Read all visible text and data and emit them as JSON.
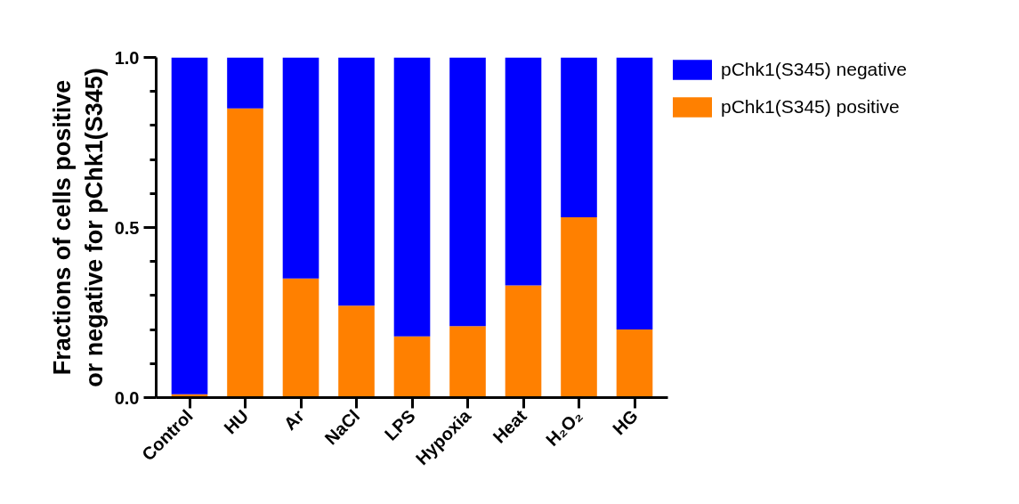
{
  "chart_data": {
    "type": "bar",
    "stacked": true,
    "ylabel": "Fractions of cells positive\nor negative for pChk1(S345)",
    "categories": [
      "Control",
      "HU",
      "Ar",
      "NaCl",
      "LPS",
      "Hypoxia",
      "Heat",
      "H₂O₂",
      "HG"
    ],
    "series": [
      {
        "name": "pChk1(S345) positive",
        "color": "#ff8000",
        "values": [
          0.01,
          0.85,
          0.35,
          0.27,
          0.18,
          0.21,
          0.33,
          0.53,
          0.2
        ]
      },
      {
        "name": "pChk1(S345) negative",
        "color": "#0000ff",
        "values": [
          0.99,
          0.15,
          0.65,
          0.73,
          0.82,
          0.79,
          0.67,
          0.47,
          0.8
        ]
      }
    ],
    "ylim": [
      0,
      1.0
    ],
    "yticks": [
      {
        "value": 0,
        "label": "0.0"
      },
      {
        "value": 0.1,
        "label": null
      },
      {
        "value": 0.2,
        "label": null
      },
      {
        "value": 0.3,
        "label": null
      },
      {
        "value": 0.4,
        "label": null
      },
      0.5,
      {
        "value": 0.6,
        "label": null
      },
      {
        "value": 0.7,
        "label": null
      },
      {
        "value": 0.8,
        "label": null
      },
      {
        "value": 0.9,
        "label": null
      },
      {
        "value": 1,
        "label": "1.0"
      }
    ],
    "grid": false,
    "legend": "right"
  }
}
